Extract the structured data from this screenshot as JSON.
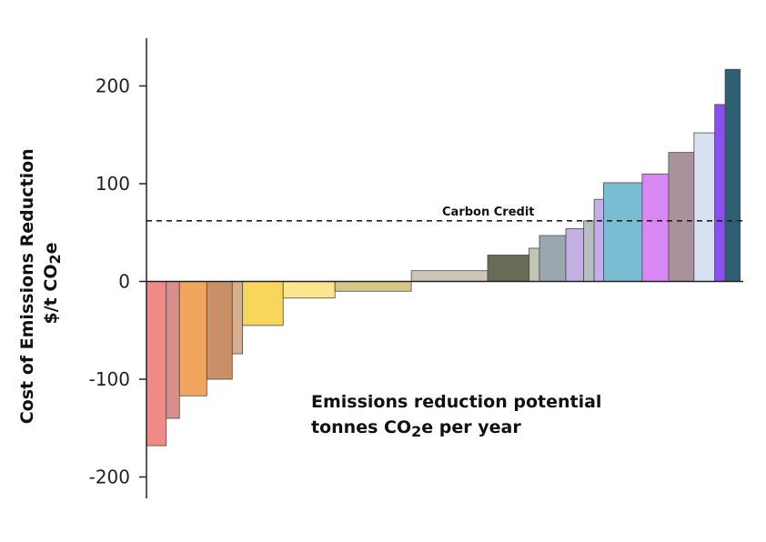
{
  "chart_data": {
    "type": "bar",
    "ylabel_line1": "Cost of Emissions Reduction",
    "ylabel_line2_prefix": "$/t CO",
    "ylabel_line2_sub": "2",
    "ylabel_line2_suffix": "e",
    "annotation_line1": "Emissions reduction potential",
    "annotation_line2_prefix": "tonnes CO",
    "annotation_line2_sub": "2",
    "annotation_line2_suffix": "e per year",
    "reference_line": {
      "label": "Carbon Credit",
      "value": 62
    },
    "ylim": [
      -220,
      245
    ],
    "yticks": [
      {
        "value": 200,
        "label": "200"
      },
      {
        "value": 100,
        "label": "100"
      },
      {
        "value": 0,
        "label": "0"
      },
      {
        "value": -100,
        "label": "-100"
      },
      {
        "value": -200,
        "label": "-200"
      }
    ],
    "x_extent": 612,
    "series": [
      {
        "width": 21,
        "value": -168,
        "color": "#f08a86"
      },
      {
        "width": 14,
        "value": -140,
        "color": "#d68f8a"
      },
      {
        "width": 29,
        "value": -117,
        "color": "#f1a65f"
      },
      {
        "width": 27,
        "value": -100,
        "color": "#c98f66"
      },
      {
        "width": 11,
        "value": -74,
        "color": "#d6ae8e"
      },
      {
        "width": 43,
        "value": -45,
        "color": "#f8d65c"
      },
      {
        "width": 55,
        "value": -17,
        "color": "#fbe58f"
      },
      {
        "width": 81,
        "value": -10,
        "color": "#d6c785"
      },
      {
        "width": 81,
        "value": 11,
        "color": "#cbc6b5"
      },
      {
        "width": 44,
        "value": 27,
        "color": "#686b55"
      },
      {
        "width": 11,
        "value": 34,
        "color": "#c2c4b4"
      },
      {
        "width": 28,
        "value": 47,
        "color": "#9aa7af"
      },
      {
        "width": 19,
        "value": 54,
        "color": "#c2b0e3"
      },
      {
        "width": 11,
        "value": 62,
        "color": "#b7bfbf"
      },
      {
        "width": 10,
        "value": 84,
        "color": "#c5aee9"
      },
      {
        "width": 41,
        "value": 101,
        "color": "#78bdd2"
      },
      {
        "width": 28,
        "value": 110,
        "color": "#d987f5"
      },
      {
        "width": 27,
        "value": 132,
        "color": "#a8929b"
      },
      {
        "width": 22,
        "value": 152,
        "color": "#d8e1f1"
      },
      {
        "width": 11,
        "value": 181,
        "color": "#8a4ff0"
      },
      {
        "width": 16,
        "value": 217,
        "color": "#2f5f72"
      }
    ]
  }
}
